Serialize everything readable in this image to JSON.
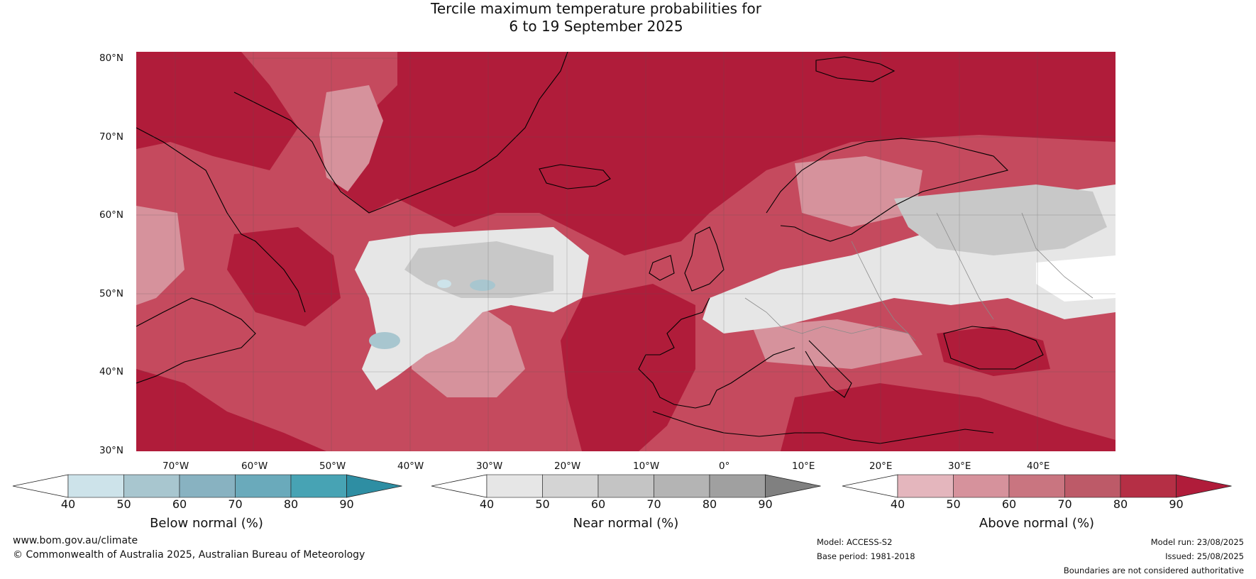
{
  "title_line1": "Tercile maximum temperature probabilities for",
  "title_line2": "6 to 19 September 2025",
  "lat_labels": [
    "80°N",
    "70°N",
    "60°N",
    "50°N",
    "40°N",
    "30°N"
  ],
  "lon_labels": [
    "70°W",
    "60°W",
    "50°W",
    "40°W",
    "30°W",
    "20°W",
    "10°W",
    "0°",
    "10°E",
    "20°E",
    "30°E",
    "40°E"
  ],
  "colorbars": {
    "below": {
      "title": "Below normal (%)",
      "ticks": [
        "40",
        "50",
        "60",
        "70",
        "80",
        "90"
      ],
      "colors": [
        "#cde3ea",
        "#a8c6cf",
        "#88b2c1",
        "#6aaabb",
        "#47a3b4",
        "#2e8ea3"
      ]
    },
    "near": {
      "title": "Near normal (%)",
      "ticks": [
        "40",
        "50",
        "60",
        "70",
        "80",
        "90"
      ],
      "colors": [
        "#e6e6e6",
        "#d4d4d4",
        "#c4c4c4",
        "#b4b4b4",
        "#a0a0a0",
        "#808080"
      ]
    },
    "above": {
      "title": "Above normal (%)",
      "ticks": [
        "40",
        "50",
        "60",
        "70",
        "80",
        "90"
      ],
      "colors": [
        "#e4b6bd",
        "#d6929c",
        "#c97580",
        "#bd5a68",
        "#b52f45",
        "#b01c3a"
      ]
    }
  },
  "footer": {
    "website": "www.bom.gov.au/climate",
    "copyright": "© Commonwealth of Australia 2025, Australian Bureau of Meteorology",
    "model": "Model: ACCESS-S2",
    "base_period": "Base period: 1981-2018",
    "model_run": "Model run: 23/08/2025",
    "issued": "Issued: 25/08/2025",
    "disclaimer": "Boundaries are not considered authoritative"
  },
  "map_colors": {
    "ocean_base": "#c54a5e",
    "strong_above": "#b01c3a",
    "light_above": "#d6929c",
    "pale_above": "#e4b6bd",
    "near_light": "#e6e6e6",
    "near_mid": "#c8c8c8",
    "below_light": "#a8c6cf",
    "white": "#ffffff",
    "coast": "#000000",
    "border": "#8a8a8a"
  }
}
